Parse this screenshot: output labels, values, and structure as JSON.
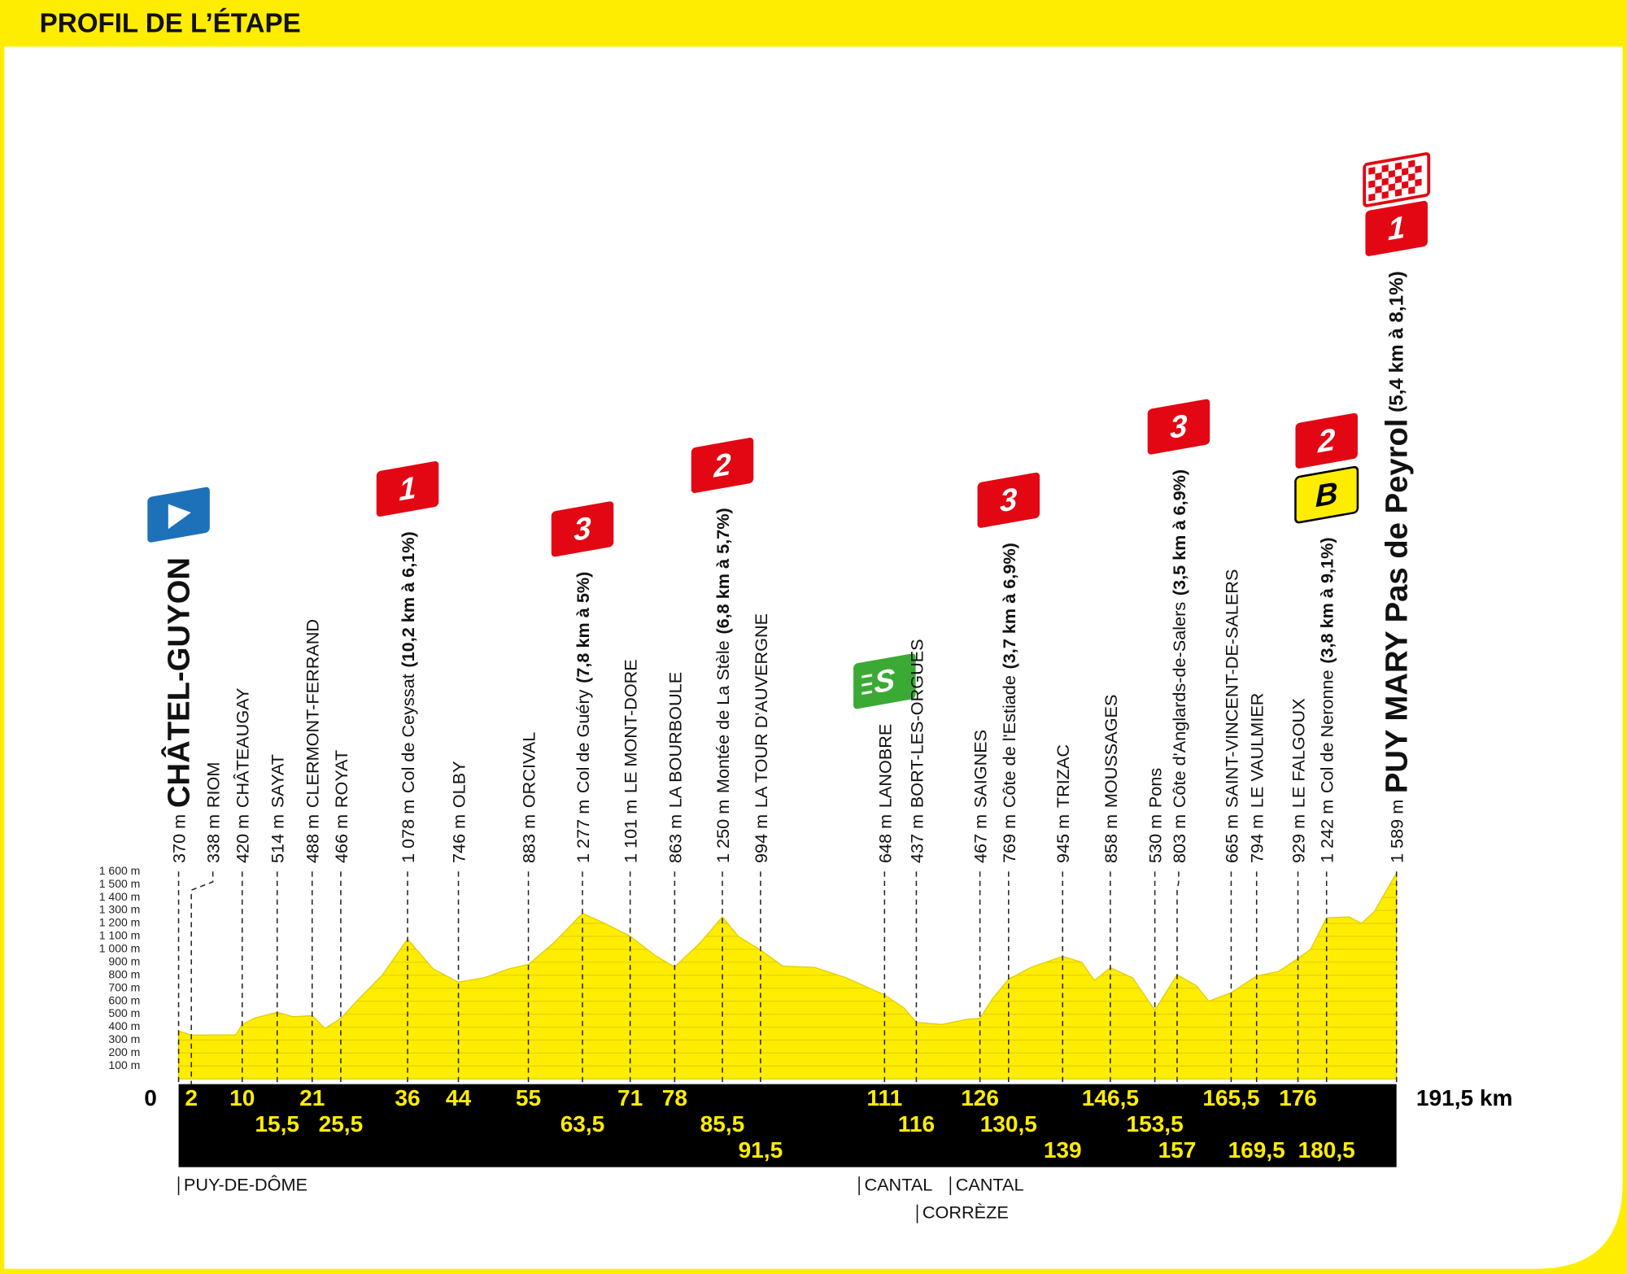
{
  "chart_data": {
    "type": "area",
    "title": "PROFIL DE L’ÉTAPE",
    "color": "#ffed00",
    "xlim": [
      0,
      191.5
    ],
    "ylim": [
      0,
      1600
    ],
    "yticks": [
      {
        "value": 100,
        "label": "100 m"
      },
      {
        "value": 200,
        "label": "200 m"
      },
      {
        "value": 300,
        "label": "300 m"
      },
      {
        "value": 400,
        "label": "400 m"
      },
      {
        "value": 500,
        "label": "500 m"
      },
      {
        "value": 600,
        "label": "600 m"
      },
      {
        "value": 700,
        "label": "700 m"
      },
      {
        "value": 800,
        "label": "800 m"
      },
      {
        "value": 900,
        "label": "900 m"
      },
      {
        "value": 1000,
        "label": "1 000 m"
      },
      {
        "value": 1100,
        "label": "1 100 m"
      },
      {
        "value": 1200,
        "label": "1 200 m"
      },
      {
        "value": 1300,
        "label": "1 300 m"
      },
      {
        "value": 1400,
        "label": "1 400 m"
      },
      {
        "value": 1500,
        "label": "1 500 m"
      },
      {
        "value": 1600,
        "label": "1 600 m"
      }
    ],
    "xticks": [
      0,
      2,
      10,
      {
        "value": 15.5,
        "label": "15,5"
      },
      21,
      {
        "value": 25.5,
        "label": "25,5"
      },
      36,
      44,
      55,
      {
        "value": 63.5,
        "label": "63,5"
      },
      71,
      78,
      {
        "value": 85.5,
        "label": "85,5"
      },
      {
        "value": 91.5,
        "label": "91,5"
      },
      111,
      116,
      126,
      {
        "value": 130.5,
        "label": "130,5"
      },
      139,
      {
        "value": 146.5,
        "label": "146,5"
      },
      {
        "value": 153.5,
        "label": "153,5"
      },
      157,
      {
        "value": 165.5,
        "label": "165,5"
      },
      {
        "value": 169.5,
        "label": "169,5"
      },
      176,
      {
        "value": 180.5,
        "label": "180,5"
      },
      {
        "value": 191.5,
        "label": "191,5 km"
      }
    ],
    "x": [
      0,
      2,
      9,
      10,
      12,
      15.5,
      18,
      21,
      23,
      25.5,
      28,
      32,
      36,
      40,
      44,
      48,
      52,
      55,
      59,
      63.5,
      67,
      71,
      75,
      78,
      82,
      85.5,
      88,
      91.5,
      95,
      100,
      105,
      111,
      114,
      116,
      120,
      124,
      126,
      128,
      130.5,
      134,
      139,
      142,
      144,
      146.5,
      150,
      153.5,
      157,
      160,
      162,
      165.5,
      169.5,
      173,
      176,
      178,
      180.5,
      184,
      186,
      188,
      191.5
    ],
    "values": [
      370,
      338,
      340,
      420,
      470,
      514,
      480,
      488,
      390,
      466,
      600,
      800,
      1078,
      850,
      746,
      780,
      850,
      883,
      1050,
      1277,
      1200,
      1101,
      950,
      863,
      1050,
      1250,
      1100,
      994,
      870,
      860,
      780,
      648,
      550,
      437,
      420,
      460,
      467,
      620,
      769,
      860,
      945,
      900,
      760,
      858,
      780,
      530,
      803,
      720,
      600,
      665,
      794,
      830,
      929,
      1000,
      1242,
      1250,
      1200,
      1290,
      1589
    ],
    "waypoints": [
      {
        "altitude": "370 m",
        "name": "CHÂTEL-GUYON"
      },
      {
        "altitude": "338 m",
        "name": "RIOM"
      },
      {
        "altitude": "420 m",
        "name": "CHÂTEAUGAY"
      },
      {
        "altitude": "514 m",
        "name": "SAYAT"
      },
      {
        "altitude": "488 m",
        "name": "CLERMONT-FERRAND"
      },
      {
        "altitude": "466 m",
        "name": "ROYAT"
      },
      {
        "altitude": "1 078 m",
        "name": "Col de Ceyssat",
        "climb": "(10,2 km à 6,1%)",
        "category": "1"
      },
      {
        "altitude": "746 m",
        "name": "OLBY"
      },
      {
        "altitude": "883 m",
        "name": "ORCIVAL"
      },
      {
        "altitude": "1 277 m",
        "name": "Col de Guéry",
        "climb": "(7,8 km à 5%)",
        "category": "3"
      },
      {
        "altitude": "1 101 m",
        "name": "LE MONT-DORE"
      },
      {
        "altitude": "863 m",
        "name": "LA BOURBOULE"
      },
      {
        "altitude": "1 250 m",
        "name": "Montée de La Stèle",
        "climb": "(6,8 km à 5,7%)",
        "category": "2"
      },
      {
        "altitude": "994 m",
        "name": "LA TOUR D'AUVERGNE"
      },
      {
        "altitude": "648 m",
        "name": "LANOBRE",
        "sprint": "S"
      },
      {
        "altitude": "437 m",
        "name": "BORT-LES-ORGUES"
      },
      {
        "altitude": "467 m",
        "name": "SAIGNES"
      },
      {
        "altitude": "769 m",
        "name": "Côte de l'Estiade",
        "climb": "(3,7 km à 6,9%)",
        "category": "3"
      },
      {
        "altitude": "945 m",
        "name": "TRIZAC"
      },
      {
        "altitude": "858 m",
        "name": "MOUSSAGES"
      },
      {
        "altitude": "530 m",
        "name": "Pons"
      },
      {
        "altitude": "803 m",
        "name": "Côte d'Anglards-de-Salers",
        "climb": "(3,5 km à 6,9%)",
        "category": "3"
      },
      {
        "altitude": "665 m",
        "name": "SAINT-VINCENT-DE-SALERS"
      },
      {
        "altitude": "794 m",
        "name": "LE VAULMIER"
      },
      {
        "altitude": "929 m",
        "name": "LE FALGOUX"
      },
      {
        "altitude": "1 242 m",
        "name": "Col de Neronne",
        "climb": "(3,8 km à 9,1%)",
        "category": "2",
        "bonus": "B"
      },
      {
        "altitude": "1 589 m",
        "name": "PUY MARY Pas de Peyrol",
        "climb": "(5,4 km à 8,1%)",
        "category": "1"
      }
    ],
    "regions": [
      "PUY-DE-DÔME",
      "CANTAL",
      "CANTAL",
      "CORRÈZE"
    ]
  }
}
